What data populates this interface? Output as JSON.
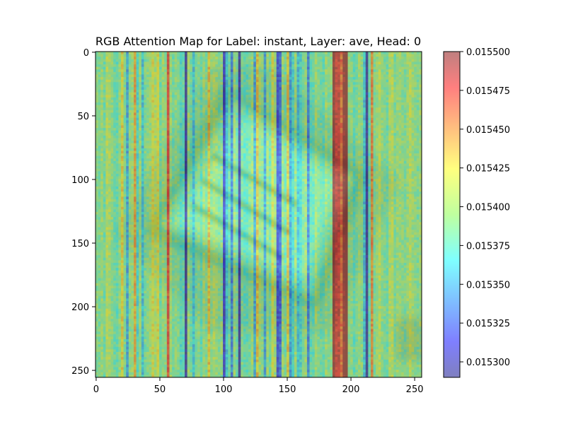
{
  "chart_data": {
    "type": "heatmap",
    "title": "RGB Attention Map for Label: instant, Layer: ave, Head: 0",
    "xlabel": "",
    "ylabel": "",
    "xlim": [
      0,
      255
    ],
    "ylim": [
      255,
      0
    ],
    "x_ticks": [
      0,
      50,
      100,
      150,
      200,
      250
    ],
    "y_ticks": [
      0,
      50,
      100,
      150,
      200,
      250
    ],
    "colorbar": {
      "range": [
        0.01529,
        0.0155
      ],
      "ticks": [
        0.0153,
        0.015325,
        0.01535,
        0.015375,
        0.0154,
        0.015425,
        0.01545,
        0.015475,
        0.0155
      ],
      "tick_labels": [
        "0.015300",
        "0.015325",
        "0.015350",
        "0.015375",
        "0.015400",
        "0.015425",
        "0.015450",
        "0.015475",
        "0.015500"
      ],
      "colormap": "jet",
      "alpha": 0.5,
      "placement": "right"
    },
    "grid": false,
    "column_values": [
      0.015395,
      0.01539,
      0.0154,
      0.015385,
      0.01541,
      0.015405,
      0.015395,
      0.015385,
      0.01538,
      0.015398,
      0.015425,
      0.01539,
      0.01535,
      0.015395,
      0.0154,
      0.01544,
      0.01537,
      0.0154,
      0.01536,
      0.01539,
      0.015395,
      0.0154,
      0.01542,
      0.015405,
      0.01542,
      0.015385,
      0.0154,
      0.015395,
      0.01547,
      0.0154,
      0.015385,
      0.015395,
      0.01539,
      0.015375,
      0.01538,
      0.015295,
      0.0154,
      0.015385,
      0.01536,
      0.01539,
      0.015395,
      0.01538,
      0.0154,
      0.01539,
      0.01543,
      0.015395,
      0.015405,
      0.0154,
      0.01539,
      0.015395,
      0.01531,
      0.01536,
      0.015385,
      0.01534,
      0.0154,
      0.015385,
      0.0153,
      0.01539,
      0.01538,
      0.01538,
      0.01539,
      0.0154,
      0.01535,
      0.01543,
      0.0154,
      0.015395,
      0.01535,
      0.0154,
      0.015385,
      0.01542,
      0.0154,
      0.01532,
      0.01533,
      0.0154,
      0.015385,
      0.01543,
      0.01535,
      0.01537,
      0.0154,
      0.01536,
      0.01537,
      0.01539,
      0.0154,
      0.01534,
      0.01538,
      0.01538,
      0.0154,
      0.01539,
      0.015385,
      0.01538,
      0.0154,
      0.01539,
      0.015395,
      0.0155,
      0.01548,
      0.01548,
      0.01546,
      0.0155,
      0.01551,
      0.015395,
      0.015395,
      0.01538,
      0.01539,
      0.0154,
      0.015395,
      0.01536,
      0.015295,
      0.01538,
      0.01545,
      0.01539,
      0.0154,
      0.01541,
      0.015395,
      0.01539,
      0.015385,
      0.015405,
      0.01541,
      0.01539,
      0.0154,
      0.0154,
      0.015395,
      0.01539,
      0.0154,
      0.01541,
      0.0154,
      0.015395,
      0.01539,
      0.0154
    ],
    "rows": 128,
    "overlay_image": "blurred photo of a tilted rectangular sign/card"
  }
}
